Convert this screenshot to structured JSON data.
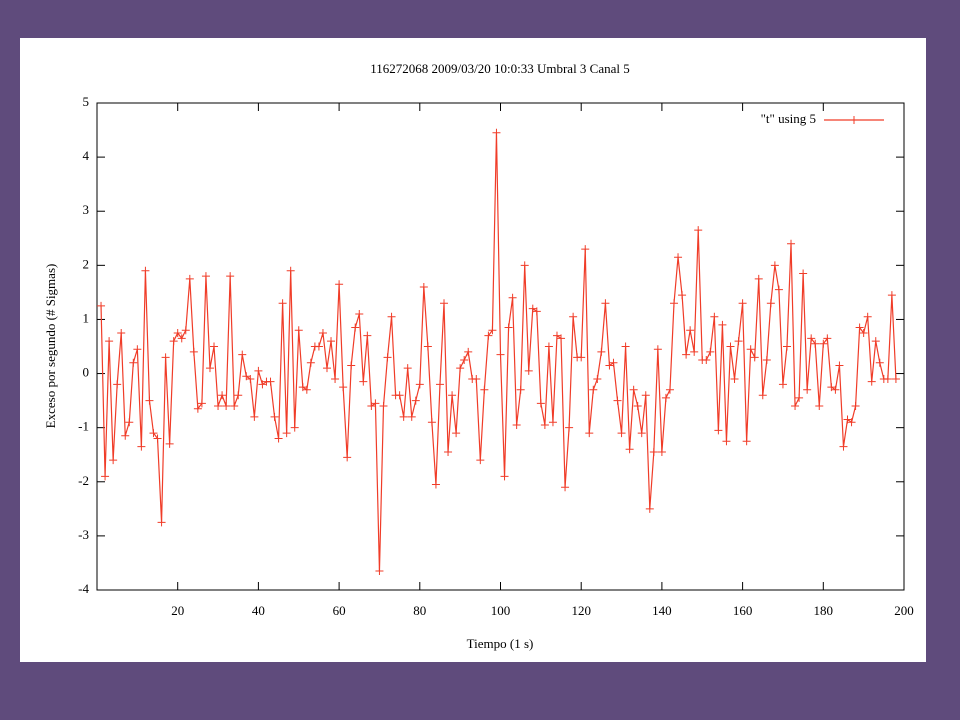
{
  "chart_data": {
    "type": "line",
    "title": "116272068 2009/03/20 10:0:33 Umbral 3 Canal 5",
    "x_label": "Tiempo (1 s)",
    "y_label": "Exceso por segundo (# Sigmas)",
    "xlim": [
      0,
      200
    ],
    "ylim": [
      -4,
      5
    ],
    "xticks": [
      20,
      40,
      60,
      80,
      100,
      120,
      140,
      160,
      180,
      200
    ],
    "yticks": [
      -4,
      -3,
      -2,
      -1,
      0,
      1,
      2,
      3,
      4,
      5
    ],
    "grid": false,
    "legend": "top-right",
    "x": [
      1,
      2,
      3,
      4,
      5,
      6,
      7,
      8,
      9,
      10,
      11,
      12,
      13,
      14,
      15,
      16,
      17,
      18,
      19,
      20,
      21,
      22,
      23,
      24,
      25,
      26,
      27,
      28,
      29,
      30,
      31,
      32,
      33,
      34,
      35,
      36,
      37,
      38,
      39,
      40,
      41,
      42,
      43,
      44,
      45,
      46,
      47,
      48,
      49,
      50,
      51,
      52,
      53,
      54,
      55,
      56,
      57,
      58,
      59,
      60,
      61,
      62,
      63,
      64,
      65,
      66,
      67,
      68,
      69,
      70,
      71,
      72,
      73,
      74,
      75,
      76,
      77,
      78,
      79,
      80,
      81,
      82,
      83,
      84,
      85,
      86,
      87,
      88,
      89,
      90,
      91,
      92,
      93,
      94,
      95,
      96,
      97,
      98,
      99,
      100,
      101,
      102,
      103,
      104,
      105,
      106,
      107,
      108,
      109,
      110,
      111,
      112,
      113,
      114,
      115,
      116,
      117,
      118,
      119,
      120,
      121,
      122,
      123,
      124,
      125,
      126,
      127,
      128,
      129,
      130,
      131,
      132,
      133,
      134,
      135,
      136,
      137,
      138,
      139,
      140,
      141,
      142,
      143,
      144,
      145,
      146,
      147,
      148,
      149,
      150,
      151,
      152,
      153,
      154,
      155,
      156,
      157,
      158,
      159,
      160,
      161,
      162,
      163,
      164,
      165,
      166,
      167,
      168,
      169,
      170,
      171,
      172,
      173,
      174,
      175,
      176,
      177,
      178,
      179,
      180,
      181,
      182,
      183,
      184,
      185,
      186,
      187,
      188,
      189,
      190,
      191,
      192,
      193,
      194,
      195,
      196,
      197,
      198
    ],
    "series": [
      {
        "name": "\"t\" using 5",
        "color": "#f03c28",
        "values": [
          1.25,
          -1.9,
          0.6,
          -1.6,
          -0.2,
          0.75,
          -1.15,
          -0.9,
          0.2,
          0.45,
          -1.35,
          1.9,
          -0.5,
          -1.1,
          -1.2,
          -2.75,
          0.3,
          -1.3,
          0.6,
          0.75,
          0.65,
          0.8,
          1.75,
          0.4,
          -0.65,
          -0.55,
          1.8,
          0.1,
          0.5,
          -0.6,
          -0.4,
          -0.6,
          1.8,
          -0.6,
          -0.4,
          0.35,
          -0.05,
          -0.1,
          -0.8,
          0.05,
          -0.2,
          -0.15,
          -0.15,
          -0.8,
          -1.2,
          1.3,
          -1.1,
          1.9,
          -1.0,
          0.8,
          -0.25,
          -0.3,
          0.2,
          0.5,
          0.5,
          0.75,
          0.1,
          0.6,
          -0.1,
          1.65,
          -0.25,
          -1.55,
          0.15,
          0.85,
          1.1,
          -0.15,
          0.7,
          -0.6,
          -0.55,
          -3.65,
          -0.6,
          0.3,
          1.05,
          -0.4,
          -0.4,
          -0.8,
          0.1,
          -0.8,
          -0.5,
          -0.2,
          1.6,
          0.5,
          -0.9,
          -2.05,
          -0.2,
          1.3,
          -1.45,
          -0.4,
          -1.1,
          0.1,
          0.25,
          0.4,
          -0.1,
          -0.1,
          -1.6,
          -0.3,
          0.7,
          0.8,
          4.45,
          0.35,
          -1.9,
          0.85,
          1.4,
          -0.95,
          -0.3,
          2.0,
          0.05,
          1.2,
          1.15,
          -0.55,
          -0.95,
          0.5,
          -0.9,
          0.7,
          0.65,
          -2.1,
          -1.0,
          1.05,
          0.3,
          0.3,
          2.3,
          -1.1,
          -0.3,
          -0.1,
          0.4,
          1.3,
          0.15,
          0.2,
          -0.5,
          -1.1,
          0.5,
          -1.4,
          -0.3,
          -0.6,
          -1.1,
          -0.4,
          -2.5,
          -1.45,
          0.45,
          -1.45,
          -0.45,
          -0.3,
          1.3,
          2.15,
          1.45,
          0.35,
          0.8,
          0.4,
          2.65,
          0.25,
          0.25,
          0.4,
          1.05,
          -1.05,
          0.9,
          -1.25,
          0.5,
          -0.1,
          0.6,
          1.3,
          -1.25,
          0.45,
          0.3,
          1.75,
          -0.4,
          0.25,
          1.3,
          2.0,
          1.55,
          -0.2,
          0.5,
          2.4,
          -0.6,
          -0.45,
          1.85,
          -0.3,
          0.65,
          0.55,
          -0.6,
          0.55,
          0.65,
          -0.25,
          -0.3,
          0.15,
          -1.35,
          -0.85,
          -0.9,
          -0.6,
          0.85,
          0.75,
          1.05,
          -0.15,
          0.6,
          0.2,
          -0.1,
          -0.1,
          1.45,
          -0.1
        ]
      }
    ]
  }
}
